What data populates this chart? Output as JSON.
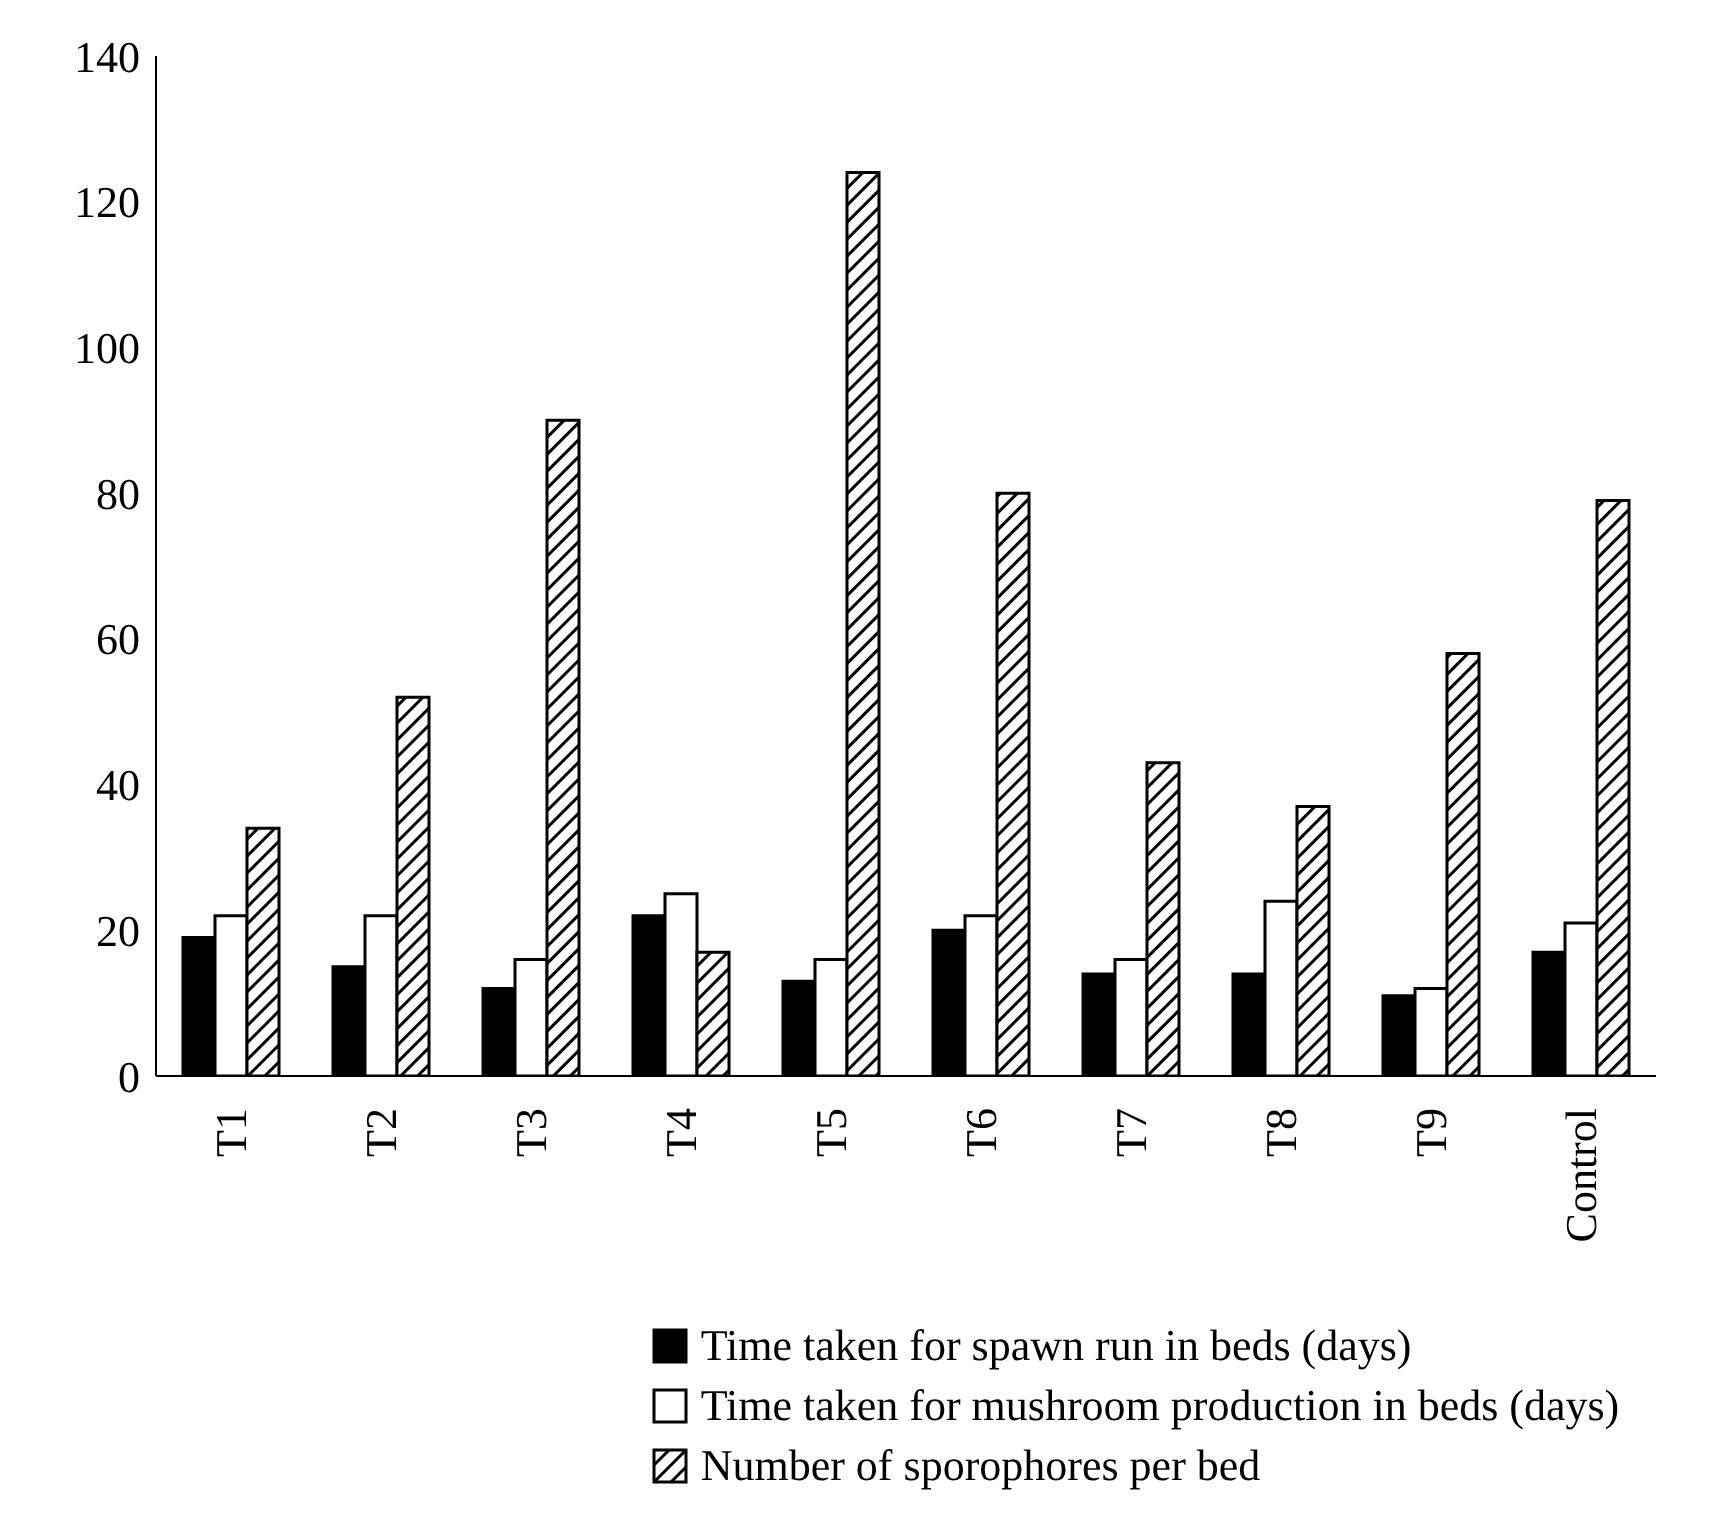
{
  "chart_data": {
    "type": "bar",
    "categories": [
      "T1",
      "T2",
      "T3",
      "T4",
      "T5",
      "T6",
      "T7",
      "T8",
      "T9",
      "Control"
    ],
    "series": [
      {
        "name": "Time taken for spawn run in beds (days)",
        "color": "#000000",
        "values": [
          19,
          15,
          12,
          22,
          13,
          20,
          14,
          14,
          11,
          17
        ]
      },
      {
        "name": "Time taken for mushroom production in beds (days)",
        "color": "#ffffff",
        "values": [
          22,
          22,
          16,
          25,
          16,
          22,
          16,
          24,
          12,
          21
        ]
      },
      {
        "name": "Number of sporophores per bed",
        "color": "#000000",
        "values": [
          34,
          52,
          90,
          17,
          124,
          80,
          43,
          37,
          58,
          79
        ]
      }
    ],
    "ylim": [
      0,
      140
    ],
    "yticks": [
      0,
      20,
      40,
      60,
      80,
      100,
      120,
      140
    ],
    "grid": false,
    "legend": "bottom"
  }
}
